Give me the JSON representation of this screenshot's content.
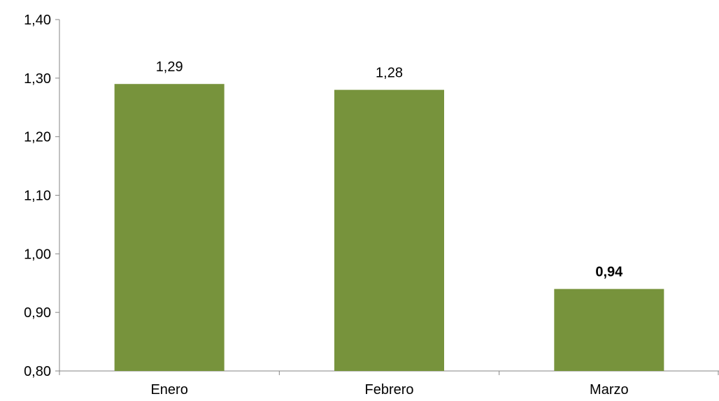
{
  "chart_data": {
    "type": "bar",
    "categories": [
      "Enero",
      "Febrero",
      "Marzo"
    ],
    "values": [
      1.29,
      1.28,
      0.94
    ],
    "data_labels": [
      "1,29",
      "1,28",
      "0,94"
    ],
    "bold_labels": [
      false,
      false,
      true
    ],
    "title": "",
    "xlabel": "",
    "ylabel": "",
    "ylim": [
      0.8,
      1.4
    ],
    "yticks": [
      0.8,
      0.9,
      1.0,
      1.1,
      1.2,
      1.3,
      1.4
    ],
    "ytick_labels": [
      "0,80",
      "0,90",
      "1,00",
      "1,10",
      "1,20",
      "1,30",
      "1,40"
    ],
    "grid": false,
    "legend": "none",
    "bar_color": "#77933c",
    "axis_color": "#868686"
  }
}
